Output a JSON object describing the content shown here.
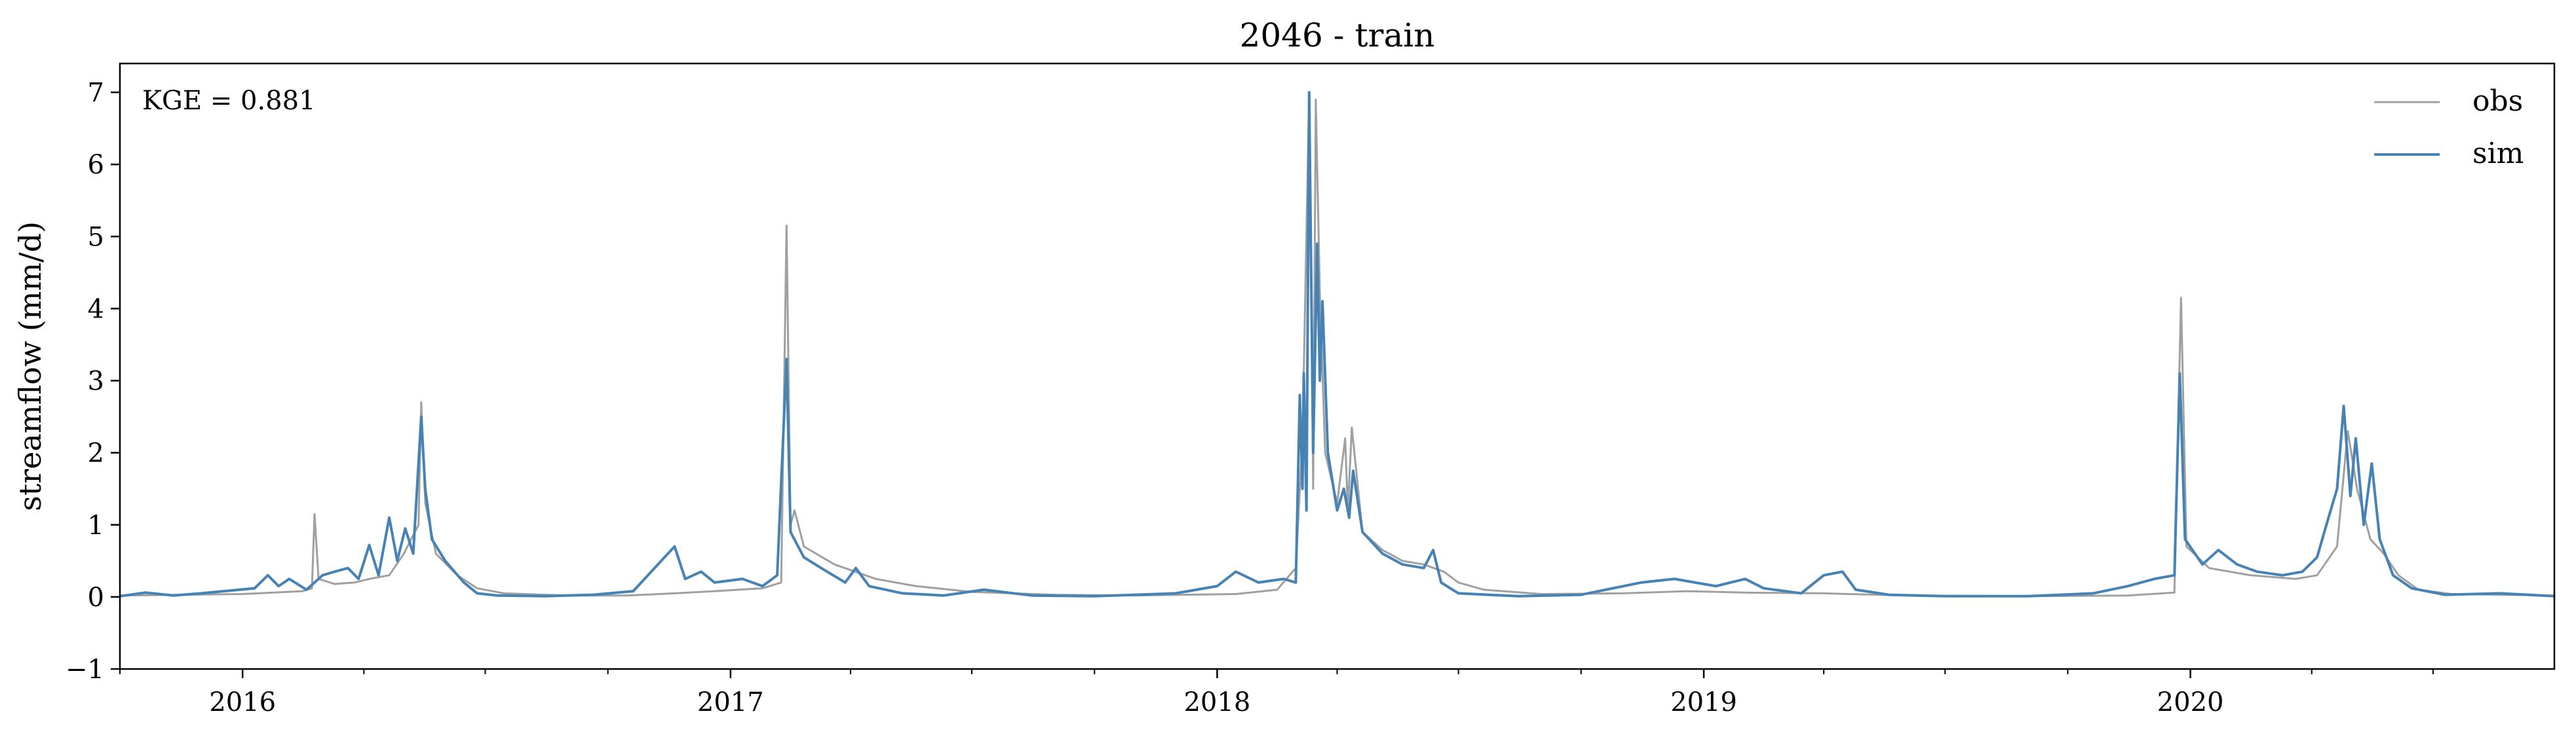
{
  "chart_data": {
    "type": "line",
    "title": "2046 - train",
    "xlabel": "",
    "ylabel": "streamflow (mm/d)",
    "xlim": [
      "2015-10-01",
      "2020-09-30"
    ],
    "ylim": [
      -1,
      7.4
    ],
    "yticks": [
      -1,
      0,
      1,
      2,
      3,
      4,
      5,
      6,
      7
    ],
    "yticklabels": [
      "−1",
      "0",
      "1",
      "2",
      "3",
      "4",
      "5",
      "6",
      "7"
    ],
    "xticks": [
      "2016-01-01",
      "2017-01-01",
      "2018-01-01",
      "2019-01-01",
      "2020-01-01"
    ],
    "xticklabels": [
      "2016",
      "2017",
      "2018",
      "2019",
      "2020"
    ],
    "minor_xticks": "quarterly",
    "grid": false,
    "legend": {
      "position": "top-right",
      "entries": [
        "obs",
        "sim"
      ]
    },
    "annotation": "KGE = 0.881",
    "series": [
      {
        "name": "obs",
        "color": "#a0a0a0",
        "points": [
          [
            "2015-10-01",
            0.02
          ],
          [
            "2015-11-15",
            0.03
          ],
          [
            "2016-01-01",
            0.04
          ],
          [
            "2016-02-15",
            0.08
          ],
          [
            "2016-02-22",
            0.12
          ],
          [
            "2016-02-24",
            1.15
          ],
          [
            "2016-02-27",
            0.25
          ],
          [
            "2016-03-10",
            0.18
          ],
          [
            "2016-03-25",
            0.2
          ],
          [
            "2016-04-05",
            0.25
          ],
          [
            "2016-04-20",
            0.3
          ],
          [
            "2016-05-01",
            0.6
          ],
          [
            "2016-05-12",
            1.0
          ],
          [
            "2016-05-14",
            2.7
          ],
          [
            "2016-05-17",
            1.3
          ],
          [
            "2016-05-25",
            0.6
          ],
          [
            "2016-06-10",
            0.3
          ],
          [
            "2016-06-25",
            0.12
          ],
          [
            "2016-07-15",
            0.05
          ],
          [
            "2016-09-01",
            0.02
          ],
          [
            "2016-10-15",
            0.02
          ],
          [
            "2016-11-20",
            0.05
          ],
          [
            "2016-12-20",
            0.08
          ],
          [
            "2017-01-25",
            0.12
          ],
          [
            "2017-02-08",
            0.2
          ],
          [
            "2017-02-12",
            5.15
          ],
          [
            "2017-02-15",
            1.0
          ],
          [
            "2017-02-18",
            1.2
          ],
          [
            "2017-02-25",
            0.7
          ],
          [
            "2017-03-20",
            0.45
          ],
          [
            "2017-04-20",
            0.25
          ],
          [
            "2017-05-20",
            0.15
          ],
          [
            "2017-07-01",
            0.07
          ],
          [
            "2017-09-01",
            0.03
          ],
          [
            "2017-11-01",
            0.02
          ],
          [
            "2018-01-15",
            0.04
          ],
          [
            "2018-02-15",
            0.1
          ],
          [
            "2018-03-01",
            0.4
          ],
          [
            "2018-03-06",
            2.2
          ],
          [
            "2018-03-11",
            7.0
          ],
          [
            "2018-03-14",
            1.5
          ],
          [
            "2018-03-16",
            6.9
          ],
          [
            "2018-03-19",
            4.2
          ],
          [
            "2018-03-23",
            2.0
          ],
          [
            "2018-04-01",
            1.3
          ],
          [
            "2018-04-07",
            2.2
          ],
          [
            "2018-04-09",
            1.2
          ],
          [
            "2018-04-12",
            2.35
          ],
          [
            "2018-04-20",
            0.9
          ],
          [
            "2018-05-05",
            0.65
          ],
          [
            "2018-05-20",
            0.5
          ],
          [
            "2018-06-05",
            0.45
          ],
          [
            "2018-06-20",
            0.35
          ],
          [
            "2018-07-01",
            0.2
          ],
          [
            "2018-07-20",
            0.1
          ],
          [
            "2018-09-01",
            0.04
          ],
          [
            "2018-11-01",
            0.05
          ],
          [
            "2018-12-20",
            0.08
          ],
          [
            "2019-02-01",
            0.06
          ],
          [
            "2019-04-01",
            0.05
          ],
          [
            "2019-06-01",
            0.02
          ],
          [
            "2019-09-01",
            0.01
          ],
          [
            "2019-11-15",
            0.02
          ],
          [
            "2019-12-20",
            0.06
          ],
          [
            "2019-12-25",
            4.15
          ],
          [
            "2019-12-29",
            0.7
          ],
          [
            "2020-01-15",
            0.4
          ],
          [
            "2020-02-15",
            0.3
          ],
          [
            "2020-03-20",
            0.25
          ],
          [
            "2020-04-05",
            0.3
          ],
          [
            "2020-04-20",
            0.7
          ],
          [
            "2020-04-28",
            2.3
          ],
          [
            "2020-05-05",
            1.5
          ],
          [
            "2020-05-15",
            0.8
          ],
          [
            "2020-05-25",
            0.6
          ],
          [
            "2020-06-05",
            0.3
          ],
          [
            "2020-06-20",
            0.1
          ],
          [
            "2020-07-15",
            0.04
          ],
          [
            "2020-09-30",
            0.02
          ]
        ]
      },
      {
        "name": "sim",
        "color": "#4682b4",
        "points": [
          [
            "2015-10-01",
            0.01
          ],
          [
            "2015-10-20",
            0.06
          ],
          [
            "2015-11-10",
            0.02
          ],
          [
            "2015-12-01",
            0.05
          ],
          [
            "2016-01-10",
            0.12
          ],
          [
            "2016-01-20",
            0.3
          ],
          [
            "2016-01-28",
            0.15
          ],
          [
            "2016-02-05",
            0.25
          ],
          [
            "2016-02-18",
            0.1
          ],
          [
            "2016-03-01",
            0.3
          ],
          [
            "2016-03-10",
            0.35
          ],
          [
            "2016-03-20",
            0.4
          ],
          [
            "2016-03-28",
            0.25
          ],
          [
            "2016-04-05",
            0.72
          ],
          [
            "2016-04-12",
            0.3
          ],
          [
            "2016-04-20",
            1.1
          ],
          [
            "2016-04-26",
            0.5
          ],
          [
            "2016-05-02",
            0.95
          ],
          [
            "2016-05-08",
            0.6
          ],
          [
            "2016-05-14",
            2.5
          ],
          [
            "2016-05-17",
            1.5
          ],
          [
            "2016-05-22",
            0.8
          ],
          [
            "2016-06-01",
            0.5
          ],
          [
            "2016-06-15",
            0.2
          ],
          [
            "2016-06-25",
            0.05
          ],
          [
            "2016-07-10",
            0.02
          ],
          [
            "2016-08-15",
            0.01
          ],
          [
            "2016-09-20",
            0.03
          ],
          [
            "2016-10-20",
            0.08
          ],
          [
            "2016-11-20",
            0.7
          ],
          [
            "2016-11-28",
            0.25
          ],
          [
            "2016-12-10",
            0.35
          ],
          [
            "2016-12-20",
            0.2
          ],
          [
            "2017-01-10",
            0.25
          ],
          [
            "2017-01-25",
            0.15
          ],
          [
            "2017-02-05",
            0.3
          ],
          [
            "2017-02-12",
            3.3
          ],
          [
            "2017-02-15",
            0.9
          ],
          [
            "2017-02-25",
            0.55
          ],
          [
            "2017-03-10",
            0.4
          ],
          [
            "2017-03-28",
            0.2
          ],
          [
            "2017-04-05",
            0.4
          ],
          [
            "2017-04-15",
            0.15
          ],
          [
            "2017-05-10",
            0.05
          ],
          [
            "2017-06-10",
            0.02
          ],
          [
            "2017-07-10",
            0.1
          ],
          [
            "2017-08-15",
            0.02
          ],
          [
            "2017-10-01",
            0.01
          ],
          [
            "2017-12-01",
            0.05
          ],
          [
            "2018-01-01",
            0.15
          ],
          [
            "2018-01-15",
            0.35
          ],
          [
            "2018-02-01",
            0.2
          ],
          [
            "2018-02-20",
            0.25
          ],
          [
            "2018-03-01",
            0.2
          ],
          [
            "2018-03-04",
            2.8
          ],
          [
            "2018-03-06",
            1.5
          ],
          [
            "2018-03-07",
            3.1
          ],
          [
            "2018-03-09",
            1.2
          ],
          [
            "2018-03-11",
            7.0
          ],
          [
            "2018-03-14",
            2.0
          ],
          [
            "2018-03-17",
            4.9
          ],
          [
            "2018-03-19",
            3.0
          ],
          [
            "2018-03-21",
            4.1
          ],
          [
            "2018-03-25",
            2.0
          ],
          [
            "2018-04-01",
            1.2
          ],
          [
            "2018-04-06",
            1.5
          ],
          [
            "2018-04-10",
            1.1
          ],
          [
            "2018-04-13",
            1.75
          ],
          [
            "2018-04-20",
            0.9
          ],
          [
            "2018-05-05",
            0.6
          ],
          [
            "2018-05-20",
            0.45
          ],
          [
            "2018-06-05",
            0.4
          ],
          [
            "2018-06-12",
            0.65
          ],
          [
            "2018-06-18",
            0.2
          ],
          [
            "2018-07-01",
            0.05
          ],
          [
            "2018-08-15",
            0.01
          ],
          [
            "2018-10-01",
            0.03
          ],
          [
            "2018-11-15",
            0.2
          ],
          [
            "2018-12-10",
            0.25
          ],
          [
            "2019-01-10",
            0.15
          ],
          [
            "2019-02-01",
            0.25
          ],
          [
            "2019-02-15",
            0.12
          ],
          [
            "2019-03-15",
            0.05
          ],
          [
            "2019-04-01",
            0.3
          ],
          [
            "2019-04-15",
            0.35
          ],
          [
            "2019-04-25",
            0.1
          ],
          [
            "2019-05-20",
            0.03
          ],
          [
            "2019-07-01",
            0.01
          ],
          [
            "2019-09-01",
            0.01
          ],
          [
            "2019-10-20",
            0.05
          ],
          [
            "2019-11-15",
            0.15
          ],
          [
            "2019-12-05",
            0.25
          ],
          [
            "2019-12-20",
            0.3
          ],
          [
            "2019-12-24",
            3.1
          ],
          [
            "2019-12-28",
            0.8
          ],
          [
            "2020-01-10",
            0.45
          ],
          [
            "2020-01-22",
            0.65
          ],
          [
            "2020-02-05",
            0.45
          ],
          [
            "2020-02-20",
            0.35
          ],
          [
            "2020-03-10",
            0.3
          ],
          [
            "2020-03-25",
            0.35
          ],
          [
            "2020-04-05",
            0.55
          ],
          [
            "2020-04-12",
            1.0
          ],
          [
            "2020-04-20",
            1.5
          ],
          [
            "2020-04-25",
            2.65
          ],
          [
            "2020-04-30",
            1.4
          ],
          [
            "2020-05-04",
            2.2
          ],
          [
            "2020-05-10",
            1.0
          ],
          [
            "2020-05-16",
            1.85
          ],
          [
            "2020-05-22",
            0.8
          ],
          [
            "2020-06-01",
            0.3
          ],
          [
            "2020-06-15",
            0.12
          ],
          [
            "2020-07-10",
            0.03
          ],
          [
            "2020-08-20",
            0.05
          ],
          [
            "2020-09-30",
            0.01
          ]
        ]
      }
    ]
  }
}
